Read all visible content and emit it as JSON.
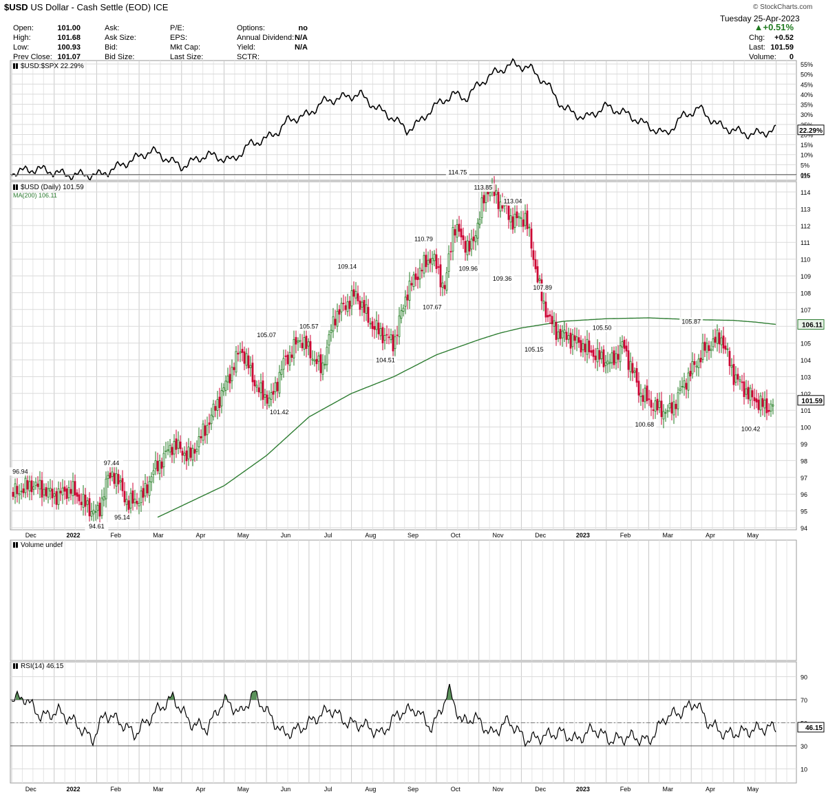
{
  "header": {
    "symbol": "$USD",
    "name": "US Dollar - Cash Settle (EOD)",
    "exchange": "ICE",
    "watermark": "© StockCharts.com",
    "date": "Tuesday  25-Apr-2023",
    "change_pct": "+0.51%",
    "quote": [
      {
        "label": "Open:",
        "value": "101.00"
      },
      {
        "label": "High:",
        "value": "101.68"
      },
      {
        "label": "Low:",
        "value": "100.93"
      },
      {
        "label": "Prev Close:",
        "value": "101.07"
      }
    ],
    "col2": [
      "Ask:",
      "Ask Size:",
      "Bid:",
      "Bid Size:"
    ],
    "col3": [
      "P/E:",
      "EPS:",
      "Mkt Cap:",
      "Last Size:"
    ],
    "col4": [
      {
        "label": "Options:",
        "value": "no"
      },
      {
        "label": "Annual Dividend:",
        "value": "N/A"
      },
      {
        "label": "Yield:",
        "value": "N/A"
      },
      {
        "label": "SCTR:",
        "value": ""
      }
    ],
    "right": [
      {
        "label": "Chg:",
        "value": "+0.52"
      },
      {
        "label": "Last:",
        "value": "101.59"
      },
      {
        "label": "Volume:",
        "value": "0"
      }
    ]
  },
  "months": [
    "Dec",
    "2022",
    "Feb",
    "Mar",
    "Apr",
    "May",
    "Jun",
    "Jul",
    "Aug",
    "Sep",
    "Oct",
    "Nov",
    "Dec",
    "2023",
    "Feb",
    "Mar",
    "Apr",
    "May"
  ],
  "colors": {
    "up": "#1f7a1f",
    "down": "#cc0033",
    "ma": "#2e7d32",
    "grid": "#d8d8d8",
    "rsi_fill": "#3f7f3f"
  },
  "chart_data": [
    {
      "type": "line",
      "legend": "$USD:$SPX 22.29%",
      "last_label": "22.29%",
      "ylim": [
        0,
        55
      ],
      "yticks": [
        "0%",
        "5%",
        "10%",
        "15%",
        "20%",
        "25%",
        "30%",
        "35%",
        "40%",
        "45%",
        "50%",
        "55%"
      ],
      "x_months": [
        0,
        0.6,
        1.3,
        2.1,
        2.6,
        3.3,
        4.0,
        4.6,
        5.2,
        5.6,
        6.0,
        6.3,
        6.5,
        7.0,
        7.3,
        7.7,
        8.2,
        8.6,
        9.0,
        9.3,
        9.6,
        9.9,
        10.1,
        10.4,
        10.7,
        11.0,
        11.4,
        11.8,
        12.2,
        12.6,
        13.0,
        13.5,
        14.0,
        14.5,
        15.0,
        15.4,
        15.8,
        16.2,
        16.6,
        17.0,
        17.4,
        17.7,
        18.0
      ],
      "values": [
        1,
        3,
        0,
        0,
        5,
        12,
        4,
        10,
        7,
        15,
        18,
        22,
        27,
        30,
        36,
        38,
        40,
        33,
        28,
        22,
        26,
        33,
        36,
        40,
        38,
        45,
        51,
        55,
        53,
        45,
        33,
        28,
        34,
        30,
        24,
        20,
        29,
        33,
        25,
        22,
        20,
        21,
        22.29
      ]
    },
    {
      "type": "candlestick",
      "legend": "$USD (Daily) 101.59",
      "ma_legend": "MA(200) 106.11",
      "last_label": "101.59",
      "ma_last_label": "106.11",
      "ylim": [
        94,
        116
      ],
      "yticks": [
        94,
        95,
        96,
        97,
        98,
        99,
        100,
        101,
        102,
        103,
        104,
        105,
        106,
        107,
        108,
        109,
        110,
        111,
        112,
        113,
        114,
        115
      ],
      "price_path": {
        "x_months": [
          0,
          0.5,
          1.0,
          1.4,
          1.8,
          2.05,
          2.2,
          2.4,
          2.75,
          3.1,
          3.3,
          3.8,
          4.2,
          4.6,
          5.0,
          5.4,
          5.8,
          6.1,
          6.4,
          6.8,
          7.3,
          7.6,
          8.1,
          8.5,
          9.0,
          9.3,
          9.6,
          9.9,
          10.2,
          10.4,
          10.8,
          11.2,
          11.5,
          11.8,
          12.1,
          12.5,
          12.8,
          13.3,
          13.8,
          14.1,
          14.4,
          14.8,
          15.2,
          15.5,
          15.9,
          16.3,
          16.7,
          17.0,
          17.4,
          17.8,
          18.0
        ],
        "values": [
          96.0,
          96.6,
          95.9,
          96.3,
          95.2,
          94.8,
          96.6,
          97.3,
          95.4,
          95.9,
          97.2,
          99.0,
          98.2,
          100.1,
          102.3,
          104.7,
          102.2,
          101.6,
          103.8,
          105.3,
          103.4,
          106.6,
          107.9,
          106.0,
          105.0,
          108.0,
          109.3,
          110.2,
          108.2,
          112.0,
          110.5,
          114.3,
          113.4,
          112.3,
          112.5,
          107.4,
          105.7,
          105.1,
          104.2,
          103.8,
          104.9,
          102.0,
          101.1,
          100.9,
          102.9,
          104.6,
          105.4,
          103.1,
          101.8,
          101.1,
          101.59
        ]
      },
      "ma_path": {
        "x_months": [
          3.0,
          4.0,
          5.0,
          6.0,
          7.0,
          8.0,
          9.0,
          10.0,
          11.0,
          11.5,
          12.0,
          13.0,
          14.0,
          15.0,
          16.0,
          17.0,
          17.5,
          18.0
        ],
        "values": [
          94.1,
          95.3,
          96.5,
          98.3,
          100.6,
          102.0,
          103.0,
          104.3,
          105.2,
          105.6,
          105.9,
          106.3,
          106.45,
          106.5,
          106.4,
          106.35,
          106.25,
          106.11
        ]
      },
      "annotations": [
        {
          "label": "96.94",
          "x_month": 0.2,
          "value": 96.94,
          "pos": "above"
        },
        {
          "label": "94.61",
          "x_month": 2.0,
          "value": 94.61,
          "pos": "below"
        },
        {
          "label": "97.44",
          "x_month": 2.35,
          "value": 97.44,
          "pos": "above"
        },
        {
          "label": "95.14",
          "x_month": 2.6,
          "value": 95.14,
          "pos": "below"
        },
        {
          "label": "105.07",
          "x_month": 6.0,
          "value": 105.07,
          "pos": "above"
        },
        {
          "label": "101.42",
          "x_month": 6.3,
          "value": 101.42,
          "pos": "below"
        },
        {
          "label": "105.57",
          "x_month": 7.0,
          "value": 105.57,
          "pos": "above"
        },
        {
          "label": "109.14",
          "x_month": 7.9,
          "value": 109.14,
          "pos": "above"
        },
        {
          "label": "104.51",
          "x_month": 8.8,
          "value": 104.51,
          "pos": "below"
        },
        {
          "label": "110.79",
          "x_month": 9.7,
          "value": 110.79,
          "pos": "above"
        },
        {
          "label": "107.67",
          "x_month": 9.9,
          "value": 107.67,
          "pos": "below"
        },
        {
          "label": "114.75",
          "x_month": 10.5,
          "value": 114.75,
          "pos": "above"
        },
        {
          "label": "109.96",
          "x_month": 10.75,
          "value": 109.96,
          "pos": "below"
        },
        {
          "label": "113.85",
          "x_month": 11.1,
          "value": 113.85,
          "pos": "above"
        },
        {
          "label": "109.36",
          "x_month": 11.55,
          "value": 109.36,
          "pos": "below"
        },
        {
          "label": "113.04",
          "x_month": 11.8,
          "value": 113.04,
          "pos": "above"
        },
        {
          "label": "107.89",
          "x_month": 12.5,
          "value": 107.89,
          "pos": "above"
        },
        {
          "label": "105.15",
          "x_month": 12.3,
          "value": 105.15,
          "pos": "below"
        },
        {
          "label": "105.50",
          "x_month": 13.9,
          "value": 105.5,
          "pos": "above"
        },
        {
          "label": "100.68",
          "x_month": 14.9,
          "value": 100.68,
          "pos": "below"
        },
        {
          "label": "105.87",
          "x_month": 16.0,
          "value": 105.87,
          "pos": "above"
        },
        {
          "label": "100.42",
          "x_month": 17.4,
          "value": 100.42,
          "pos": "below"
        }
      ]
    },
    {
      "type": "bar",
      "legend": "Volume undef",
      "values": []
    },
    {
      "type": "line",
      "legend": "RSI(14) 46.15",
      "last_label": "46.15",
      "ylim": [
        0,
        100
      ],
      "yticks": [
        10,
        30,
        50,
        70,
        90
      ],
      "reference_lines": [
        30,
        50,
        70
      ],
      "x_months": [
        0,
        0.3,
        0.7,
        1.1,
        1.5,
        1.9,
        2.2,
        2.5,
        2.9,
        3.4,
        3.8,
        4.2,
        4.6,
        5.0,
        5.4,
        5.7,
        6.0,
        6.4,
        6.8,
        7.2,
        7.5,
        7.9,
        8.3,
        8.7,
        9.1,
        9.5,
        9.9,
        10.3,
        10.6,
        10.9,
        11.3,
        11.7,
        12.1,
        12.5,
        12.9,
        13.3,
        13.7,
        14.1,
        14.6,
        15.0,
        15.4,
        15.8,
        16.1,
        16.4,
        16.8,
        17.2,
        17.6,
        18.0
      ],
      "values": [
        70,
        72,
        55,
        60,
        50,
        35,
        58,
        52,
        40,
        60,
        72,
        50,
        45,
        70,
        58,
        76,
        60,
        40,
        45,
        55,
        62,
        50,
        48,
        40,
        58,
        62,
        45,
        78,
        50,
        55,
        40,
        52,
        35,
        38,
        42,
        35,
        45,
        35,
        38,
        34,
        55,
        60,
        68,
        50,
        40,
        42,
        45,
        46.15
      ]
    }
  ]
}
